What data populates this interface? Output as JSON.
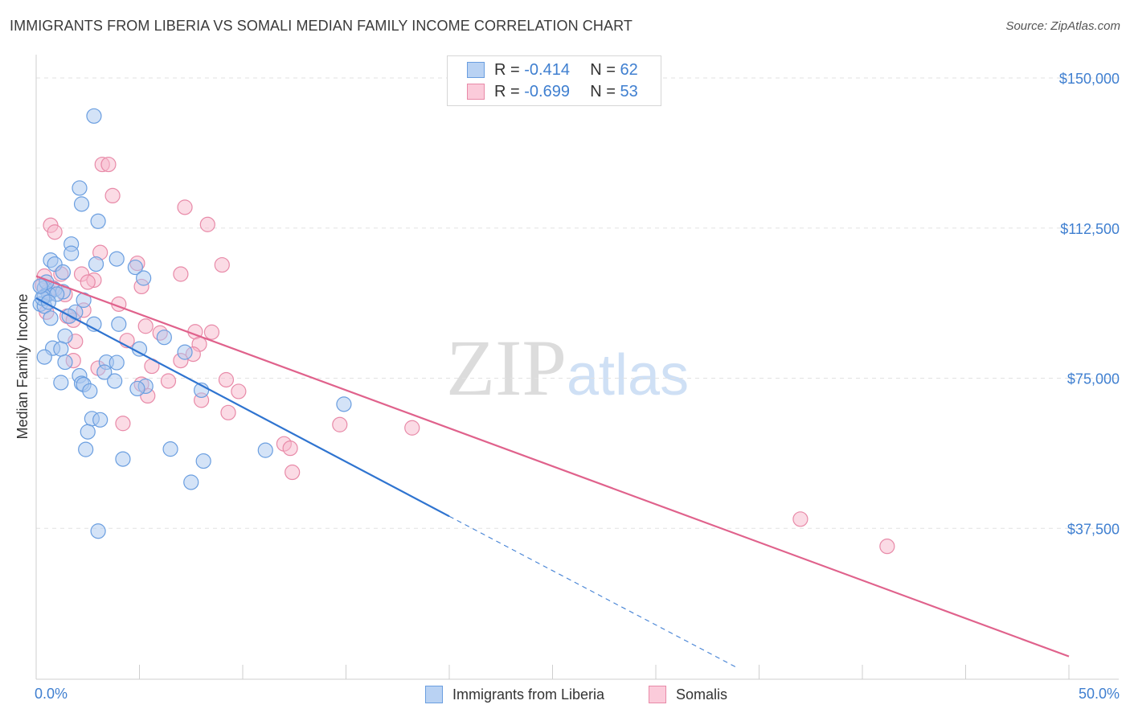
{
  "title": "IMMIGRANTS FROM LIBERIA VS SOMALI MEDIAN FAMILY INCOME CORRELATION CHART",
  "source": "Source: ZipAtlas.com",
  "watermark": {
    "zip": "ZIP",
    "atlas": "atlas"
  },
  "legend": {
    "r_label": "R =",
    "n_label": "N =",
    "series": [
      {
        "r": "-0.414",
        "n": "62"
      },
      {
        "r": "-0.699",
        "n": "53"
      }
    ]
  },
  "bottom_legend": [
    "Immigrants from Liberia",
    "Somalis"
  ],
  "colors": {
    "blue_fill": "#a9c8f0",
    "blue_stroke": "#6a9ee0",
    "blue_line": "#2f74d0",
    "pink_fill": "#f7b8cc",
    "pink_stroke": "#e88aa8",
    "pink_line": "#e0628c",
    "tick": "#3f7fd0",
    "grid": "#e2e2e2"
  },
  "chart_data": {
    "type": "scatter",
    "title": "IMMIGRANTS FROM LIBERIA VS SOMALI MEDIAN FAMILY INCOME CORRELATION CHART",
    "xlabel": "",
    "ylabel": "Median Family Income",
    "xlim": [
      0,
      50
    ],
    "ylim": [
      0,
      155000
    ],
    "x_tick_labels": [
      "0.0%",
      "50.0%"
    ],
    "y_ticks": [
      37500,
      75000,
      112500,
      150000
    ],
    "y_tick_labels": [
      "$37,500",
      "$75,000",
      "$112,500",
      "$150,000"
    ],
    "series": [
      {
        "name": "Immigrants from Liberia",
        "r": -0.414,
        "n": 62,
        "points": [
          [
            2.8,
            140500
          ],
          [
            3.0,
            114200
          ],
          [
            2.1,
            122500
          ],
          [
            2.2,
            118500
          ],
          [
            1.7,
            108500
          ],
          [
            3.9,
            104800
          ],
          [
            0.7,
            104500
          ],
          [
            0.9,
            103500
          ],
          [
            1.7,
            106200
          ],
          [
            2.9,
            103500
          ],
          [
            4.8,
            102700
          ],
          [
            1.3,
            101500
          ],
          [
            5.2,
            100000
          ],
          [
            0.4,
            97500
          ],
          [
            0.9,
            97200
          ],
          [
            1.3,
            96600
          ],
          [
            0.6,
            96000
          ],
          [
            0.4,
            95400
          ],
          [
            2.3,
            94500
          ],
          [
            0.2,
            93500
          ],
          [
            0.4,
            93000
          ],
          [
            1.9,
            91500
          ],
          [
            1.6,
            90500
          ],
          [
            0.7,
            90000
          ],
          [
            2.8,
            88500
          ],
          [
            4.0,
            88500
          ],
          [
            1.4,
            85500
          ],
          [
            6.2,
            85200
          ],
          [
            0.8,
            82500
          ],
          [
            1.2,
            82300
          ],
          [
            5.0,
            82300
          ],
          [
            7.2,
            81500
          ],
          [
            0.4,
            80300
          ],
          [
            1.4,
            79000
          ],
          [
            3.4,
            79000
          ],
          [
            3.9,
            78900
          ],
          [
            3.3,
            76500
          ],
          [
            2.1,
            75600
          ],
          [
            3.8,
            74300
          ],
          [
            1.2,
            73900
          ],
          [
            2.2,
            73700
          ],
          [
            2.3,
            73400
          ],
          [
            5.3,
            73000
          ],
          [
            4.9,
            72400
          ],
          [
            2.6,
            71800
          ],
          [
            8.0,
            72000
          ],
          [
            14.9,
            68500
          ],
          [
            2.7,
            64900
          ],
          [
            3.1,
            64600
          ],
          [
            2.5,
            61600
          ],
          [
            2.4,
            57200
          ],
          [
            6.5,
            57300
          ],
          [
            11.1,
            57000
          ],
          [
            4.2,
            54800
          ],
          [
            8.1,
            54300
          ],
          [
            7.5,
            49000
          ],
          [
            3.0,
            36800
          ],
          [
            0.3,
            95000
          ],
          [
            0.5,
            99000
          ],
          [
            1.0,
            96000
          ],
          [
            0.2,
            98000
          ],
          [
            0.6,
            94000
          ]
        ]
      },
      {
        "name": "Somalis",
        "r": -0.699,
        "n": 53,
        "points": [
          [
            3.2,
            128400
          ],
          [
            3.5,
            128400
          ],
          [
            3.7,
            120600
          ],
          [
            7.2,
            117700
          ],
          [
            8.3,
            113400
          ],
          [
            0.7,
            113200
          ],
          [
            0.9,
            111500
          ],
          [
            3.1,
            106400
          ],
          [
            4.9,
            103700
          ],
          [
            9.0,
            103300
          ],
          [
            7.0,
            101000
          ],
          [
            1.2,
            101000
          ],
          [
            2.2,
            101000
          ],
          [
            2.8,
            99500
          ],
          [
            2.5,
            99000
          ],
          [
            5.1,
            97900
          ],
          [
            0.3,
            98200
          ],
          [
            0.8,
            97600
          ],
          [
            4.0,
            93500
          ],
          [
            2.3,
            92000
          ],
          [
            0.5,
            91500
          ],
          [
            1.5,
            90500
          ],
          [
            1.8,
            89500
          ],
          [
            5.3,
            88000
          ],
          [
            7.7,
            86600
          ],
          [
            6.0,
            86300
          ],
          [
            8.5,
            86500
          ],
          [
            4.4,
            84400
          ],
          [
            1.9,
            84200
          ],
          [
            7.9,
            83500
          ],
          [
            7.6,
            81000
          ],
          [
            1.8,
            79400
          ],
          [
            7.0,
            79400
          ],
          [
            5.6,
            78000
          ],
          [
            3.0,
            77500
          ],
          [
            9.2,
            74600
          ],
          [
            6.4,
            74300
          ],
          [
            5.1,
            73500
          ],
          [
            9.8,
            71700
          ],
          [
            5.4,
            70600
          ],
          [
            8.0,
            69500
          ],
          [
            9.3,
            66400
          ],
          [
            14.7,
            63400
          ],
          [
            18.2,
            62600
          ],
          [
            4.2,
            63700
          ],
          [
            12.0,
            58600
          ],
          [
            12.3,
            57500
          ],
          [
            12.4,
            51500
          ],
          [
            37.0,
            39800
          ],
          [
            41.2,
            33000
          ],
          [
            0.4,
            100500
          ],
          [
            0.6,
            96800
          ],
          [
            1.4,
            95900
          ]
        ]
      }
    ],
    "trend_lines": [
      {
        "series": "Immigrants from Liberia",
        "x": [
          0,
          20
        ],
        "y": [
          95000,
          40500
        ],
        "style": "solid"
      },
      {
        "series": "Immigrants from Liberia",
        "x": [
          20,
          34
        ],
        "y": [
          40500,
          2500
        ],
        "style": "dashed"
      },
      {
        "series": "Somalis",
        "x": [
          0,
          50
        ],
        "y": [
          100500,
          5500
        ],
        "style": "solid"
      }
    ]
  }
}
